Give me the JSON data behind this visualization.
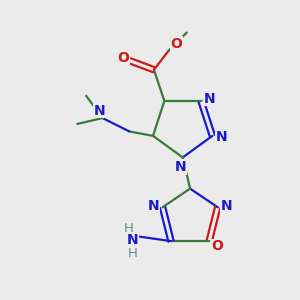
{
  "background_color": "#ebebeb",
  "bond_color": "#3a7a3a",
  "N_color": "#1a1acc",
  "O_color": "#cc1a1a",
  "H_color": "#5a9090",
  "line_width": 1.6,
  "figsize": [
    3.0,
    3.0
  ],
  "dpi": 100,
  "xlim": [
    0,
    10
  ],
  "ylim": [
    0,
    10
  ]
}
